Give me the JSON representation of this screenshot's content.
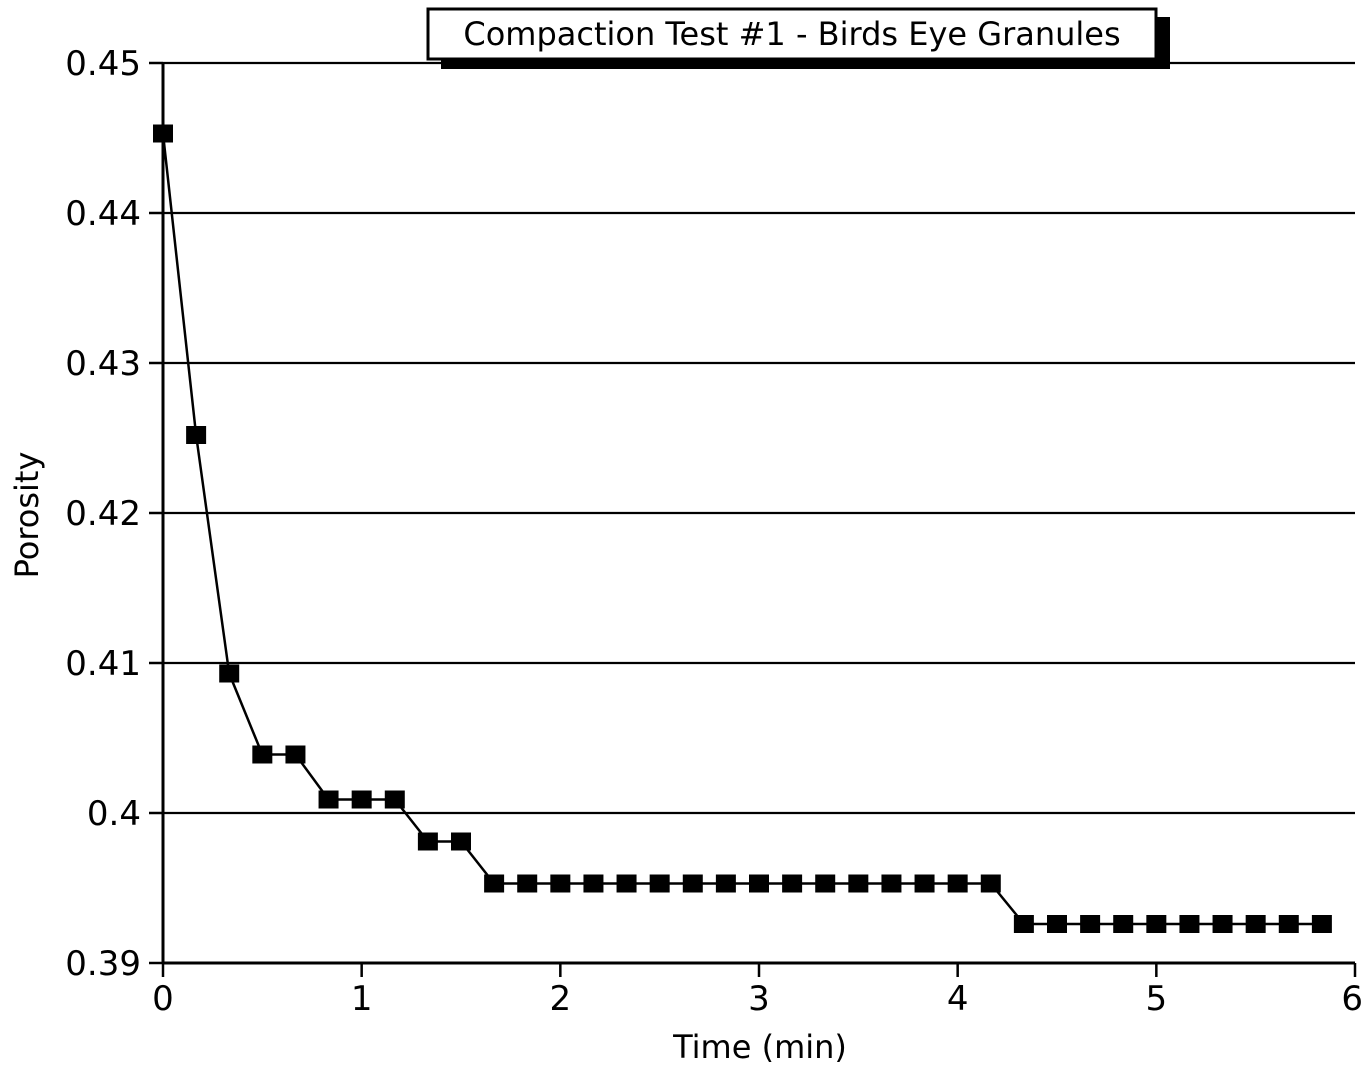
{
  "chart_data": {
    "type": "line",
    "title": "Compaction Test #1 - Birds Eye Granules",
    "xlabel": "Time (min)",
    "ylabel": "Porosity",
    "xlim": [
      0,
      6
    ],
    "ylim": [
      0.39,
      0.45
    ],
    "grid": "horizontal",
    "marker": "square",
    "x_ticks": [
      "0",
      "1",
      "2",
      "3",
      "4",
      "5",
      "6"
    ],
    "y_ticks": [
      "0.39",
      "0.4",
      "0.41",
      "0.42",
      "0.43",
      "0.44",
      "0.45"
    ],
    "series": [
      {
        "x": [
          0,
          0.1667,
          0.3333,
          0.5,
          0.6667,
          0.8333,
          1.0,
          1.1667,
          1.3333,
          1.5,
          1.6667,
          1.8333,
          2.0,
          2.1667,
          2.3333,
          2.5,
          2.6667,
          2.8333,
          3.0,
          3.1667,
          3.3333,
          3.5,
          3.6667,
          3.8333,
          4.0,
          4.1667,
          4.3333,
          4.5,
          4.6667,
          4.8333,
          5.0,
          5.1667,
          5.3333,
          5.5,
          5.6667,
          5.8333
        ],
        "y": [
          0.4453,
          0.4252,
          0.4093,
          0.4039,
          0.4039,
          0.4009,
          0.4009,
          0.4009,
          0.3981,
          0.3981,
          0.3953,
          0.3953,
          0.3953,
          0.3953,
          0.3953,
          0.3953,
          0.3953,
          0.3953,
          0.3953,
          0.3953,
          0.3953,
          0.3953,
          0.3953,
          0.3953,
          0.3953,
          0.3953,
          0.3926,
          0.3926,
          0.3926,
          0.3926,
          0.3926,
          0.3926,
          0.3926,
          0.3926,
          0.3926,
          0.3926
        ]
      }
    ]
  }
}
